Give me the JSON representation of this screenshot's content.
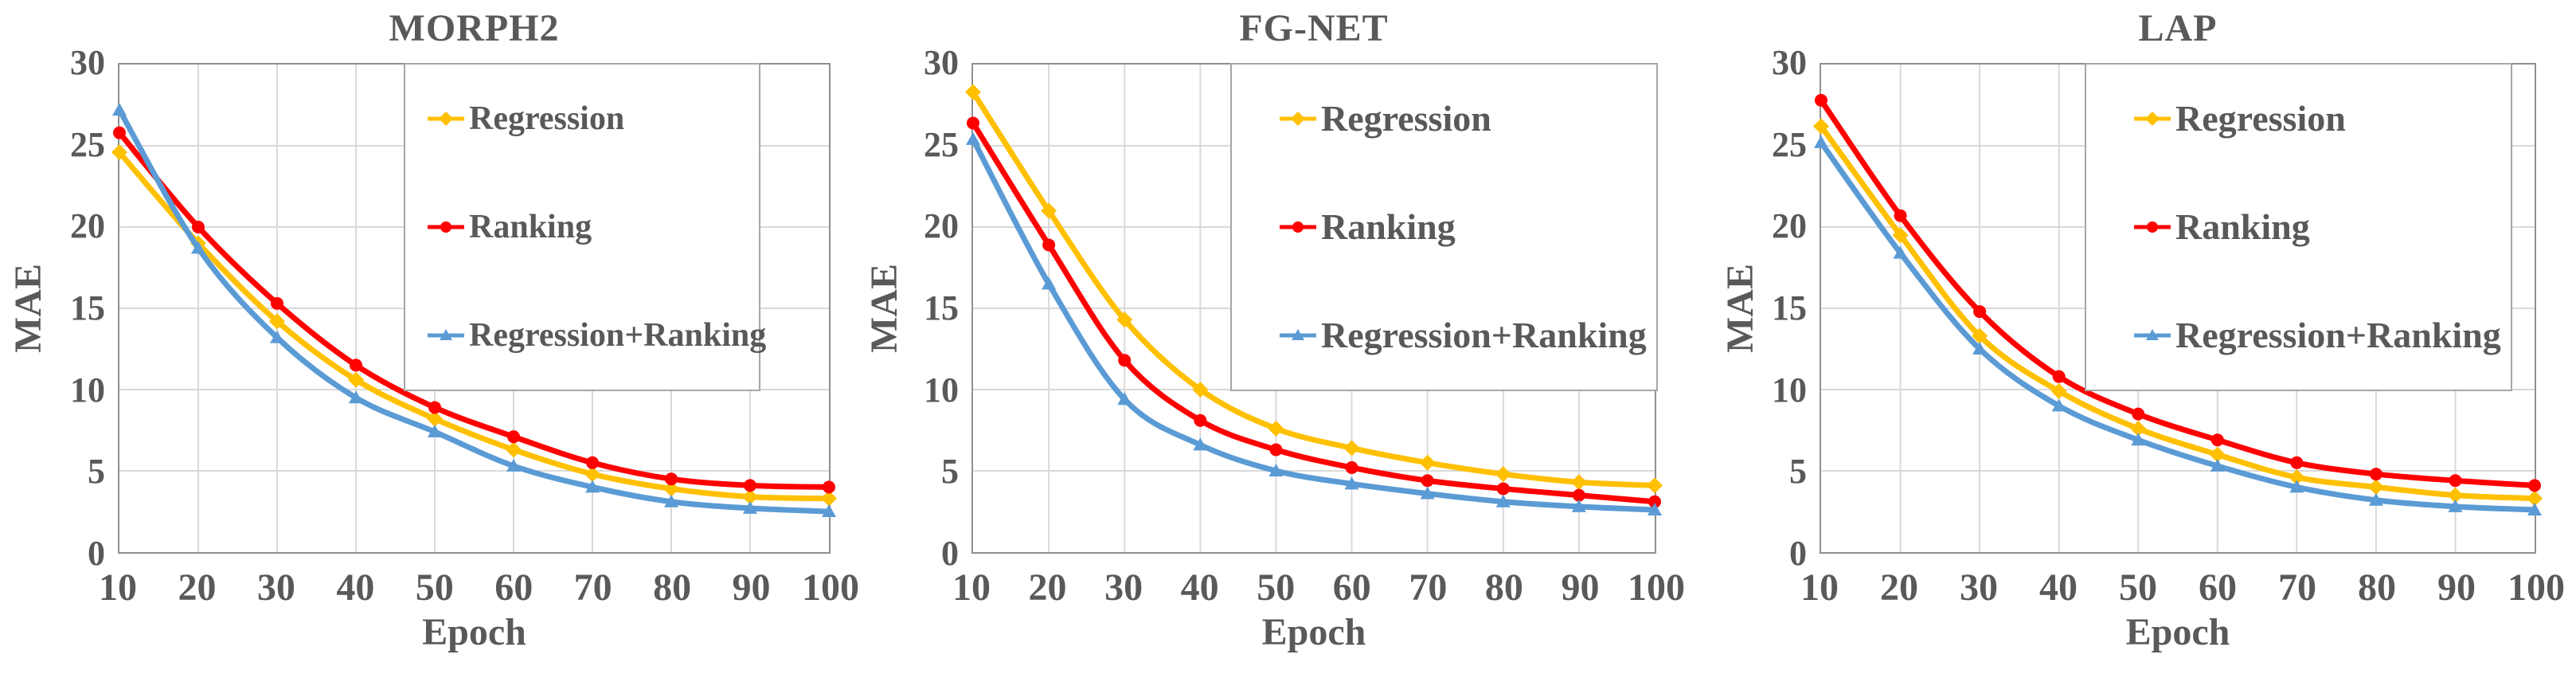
{
  "axes": {
    "xlabel": "Epoch",
    "ylabel": "MAE",
    "x_ticks": [
      10,
      20,
      30,
      40,
      50,
      60,
      70,
      80,
      90,
      100
    ],
    "y_ticks": [
      0,
      5,
      10,
      15,
      20,
      25,
      30
    ],
    "xlim": [
      10,
      100
    ],
    "ylim": [
      0,
      30
    ]
  },
  "palette": {
    "regression": "#FFC000",
    "ranking": "#FF0000",
    "regression_plus_ranking": "#5B9BD5",
    "grid": "#D9D9D9",
    "frame": "#8F8F8F",
    "text": "#595959",
    "legend_border": "#A6A6A6",
    "background": "#FFFFFF"
  },
  "chart_data": [
    {
      "type": "line",
      "title": "MORPH2",
      "xlabel": "Epoch",
      "ylabel": "MAE",
      "x": [
        10,
        20,
        30,
        40,
        50,
        60,
        70,
        80,
        90,
        100
      ],
      "xlim": [
        10,
        100
      ],
      "ylim": [
        0,
        30
      ],
      "grid": true,
      "legend_position": "top-right",
      "series": [
        {
          "name": "Regression",
          "color": "#FFC000",
          "marker": "diamond",
          "values": [
            24.6,
            19.0,
            14.2,
            10.6,
            8.2,
            6.3,
            4.8,
            3.9,
            3.4,
            3.3
          ]
        },
        {
          "name": "Ranking",
          "color": "#FF0000",
          "marker": "circle",
          "values": [
            25.8,
            20.0,
            15.3,
            11.5,
            8.9,
            7.1,
            5.5,
            4.5,
            4.1,
            4.0
          ]
        },
        {
          "name": "Regression+Ranking",
          "color": "#5B9BD5",
          "marker": "triangle",
          "values": [
            27.2,
            18.7,
            13.2,
            9.5,
            7.4,
            5.3,
            4.0,
            3.1,
            2.7,
            2.5
          ]
        }
      ]
    },
    {
      "type": "line",
      "title": "FG-NET",
      "xlabel": "Epoch",
      "ylabel": "MAE",
      "x": [
        10,
        20,
        30,
        40,
        50,
        60,
        70,
        80,
        90,
        100
      ],
      "xlim": [
        10,
        100
      ],
      "ylim": [
        0,
        30
      ],
      "grid": true,
      "legend_position": "top-right",
      "series": [
        {
          "name": "Regression",
          "color": "#FFC000",
          "marker": "diamond",
          "values": [
            28.3,
            21.0,
            14.3,
            10.0,
            7.6,
            6.4,
            5.5,
            4.8,
            4.3,
            4.1
          ]
        },
        {
          "name": "Ranking",
          "color": "#FF0000",
          "marker": "circle",
          "values": [
            26.4,
            18.9,
            11.8,
            8.1,
            6.3,
            5.2,
            4.4,
            3.9,
            3.5,
            3.1
          ]
        },
        {
          "name": "Regression+Ranking",
          "color": "#5B9BD5",
          "marker": "triangle",
          "values": [
            25.4,
            16.5,
            9.4,
            6.6,
            5.0,
            4.2,
            3.6,
            3.1,
            2.8,
            2.6
          ]
        }
      ]
    },
    {
      "type": "line",
      "title": "LAP",
      "xlabel": "Epoch",
      "ylabel": "MAE",
      "x": [
        10,
        20,
        30,
        40,
        50,
        60,
        70,
        80,
        90,
        100
      ],
      "xlim": [
        10,
        100
      ],
      "ylim": [
        0,
        30
      ],
      "grid": true,
      "legend_position": "top-right",
      "series": [
        {
          "name": "Regression",
          "color": "#FFC000",
          "marker": "diamond",
          "values": [
            26.2,
            19.5,
            13.3,
            9.9,
            7.6,
            6.0,
            4.6,
            4.0,
            3.5,
            3.3
          ]
        },
        {
          "name": "Ranking",
          "color": "#FF0000",
          "marker": "circle",
          "values": [
            27.8,
            20.7,
            14.8,
            10.8,
            8.5,
            6.9,
            5.5,
            4.8,
            4.4,
            4.1
          ]
        },
        {
          "name": "Regression+Ranking",
          "color": "#5B9BD5",
          "marker": "triangle",
          "values": [
            25.2,
            18.4,
            12.5,
            9.0,
            6.9,
            5.3,
            4.0,
            3.2,
            2.8,
            2.6
          ]
        }
      ]
    }
  ]
}
